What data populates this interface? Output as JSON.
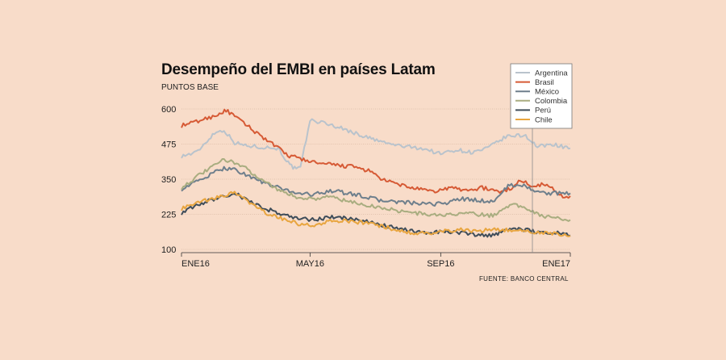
{
  "chart_data": {
    "type": "line",
    "title": "Desempeño del EMBI en países Latam",
    "subtitle": "PUNTOS BASE",
    "source": "FUENTE: BANCO CENTRAL",
    "ylim": [
      100,
      600
    ],
    "yticks": [
      "600",
      "475",
      "350",
      "225",
      "100"
    ],
    "ytick_values": [
      600,
      475,
      350,
      225,
      100
    ],
    "x_start": "2016-01-01",
    "x_end": "2017-01-01",
    "xticks": [
      {
        "label": "ENE16",
        "date": "2016-01-01"
      },
      {
        "label": "MAY16",
        "date": "2016-05-01"
      },
      {
        "label": "SEP16",
        "date": "2016-09-01"
      },
      {
        "label": "ENE17",
        "date": "2017-01-01"
      }
    ],
    "grid": true,
    "legend_position": "top-right",
    "series": [
      {
        "name": "Argentina",
        "color": "#b9c3cc",
        "x": [
          "2016-01-01",
          "2016-01-15",
          "2016-02-01",
          "2016-02-10",
          "2016-02-20",
          "2016-03-01",
          "2016-03-15",
          "2016-04-01",
          "2016-04-12",
          "2016-04-18",
          "2016-04-22",
          "2016-05-01",
          "2016-05-15",
          "2016-06-01",
          "2016-06-15",
          "2016-07-01",
          "2016-07-15",
          "2016-08-01",
          "2016-08-15",
          "2016-09-01",
          "2016-09-15",
          "2016-10-01",
          "2016-10-15",
          "2016-11-01",
          "2016-11-10",
          "2016-11-20",
          "2016-12-01",
          "2016-12-15",
          "2017-01-01"
        ],
        "values": [
          432,
          445,
          515,
          525,
          480,
          470,
          465,
          460,
          400,
          385,
          390,
          560,
          550,
          530,
          510,
          490,
          475,
          465,
          460,
          440,
          455,
          445,
          460,
          500,
          505,
          505,
          465,
          475,
          460
        ]
      },
      {
        "name": "Brasil",
        "color": "#d65a35",
        "x": [
          "2016-01-01",
          "2016-01-15",
          "2016-02-01",
          "2016-02-12",
          "2016-02-25",
          "2016-03-10",
          "2016-03-25",
          "2016-04-10",
          "2016-04-25",
          "2016-05-10",
          "2016-05-25",
          "2016-06-10",
          "2016-06-25",
          "2016-07-10",
          "2016-07-25",
          "2016-08-10",
          "2016-08-25",
          "2016-09-10",
          "2016-09-25",
          "2016-10-10",
          "2016-10-25",
          "2016-11-05",
          "2016-11-15",
          "2016-11-25",
          "2016-12-10",
          "2016-12-25",
          "2017-01-01"
        ],
        "values": [
          540,
          555,
          575,
          595,
          560,
          520,
          480,
          435,
          420,
          405,
          400,
          395,
          380,
          345,
          330,
          315,
          305,
          320,
          310,
          320,
          305,
          315,
          345,
          330,
          330,
          290,
          290
        ]
      },
      {
        "name": "México",
        "color": "#6e7f8c",
        "x": [
          "2016-01-01",
          "2016-01-20",
          "2016-02-10",
          "2016-02-20",
          "2016-03-05",
          "2016-03-20",
          "2016-04-05",
          "2016-04-20",
          "2016-05-05",
          "2016-05-20",
          "2016-06-05",
          "2016-06-20",
          "2016-07-05",
          "2016-07-20",
          "2016-08-05",
          "2016-08-20",
          "2016-09-05",
          "2016-09-20",
          "2016-10-05",
          "2016-10-20",
          "2016-11-05",
          "2016-11-20",
          "2016-12-05",
          "2016-12-20",
          "2017-01-01"
        ],
        "values": [
          315,
          350,
          390,
          385,
          360,
          335,
          315,
          300,
          295,
          310,
          300,
          290,
          275,
          270,
          265,
          260,
          265,
          280,
          275,
          270,
          330,
          325,
          300,
          300,
          300
        ]
      },
      {
        "name": "Colombia",
        "color": "#a9ad80",
        "x": [
          "2016-01-01",
          "2016-01-20",
          "2016-02-10",
          "2016-02-20",
          "2016-03-05",
          "2016-03-20",
          "2016-04-05",
          "2016-04-20",
          "2016-05-05",
          "2016-05-20",
          "2016-06-05",
          "2016-06-20",
          "2016-07-05",
          "2016-07-20",
          "2016-08-05",
          "2016-08-20",
          "2016-09-05",
          "2016-09-20",
          "2016-10-05",
          "2016-10-20",
          "2016-11-05",
          "2016-11-20",
          "2016-12-05",
          "2016-12-20",
          "2017-01-01"
        ],
        "values": [
          320,
          370,
          420,
          410,
          380,
          340,
          305,
          285,
          280,
          290,
          270,
          260,
          250,
          240,
          230,
          225,
          220,
          230,
          225,
          220,
          260,
          250,
          220,
          210,
          205
        ]
      },
      {
        "name": "Perú",
        "color": "#3f4d5a",
        "x": [
          "2016-01-01",
          "2016-01-20",
          "2016-02-10",
          "2016-02-20",
          "2016-03-05",
          "2016-03-20",
          "2016-04-05",
          "2016-04-20",
          "2016-05-05",
          "2016-05-20",
          "2016-06-05",
          "2016-06-20",
          "2016-07-05",
          "2016-07-20",
          "2016-08-05",
          "2016-08-20",
          "2016-09-05",
          "2016-09-20",
          "2016-10-05",
          "2016-10-20",
          "2016-11-05",
          "2016-11-20",
          "2016-12-05",
          "2016-12-20",
          "2017-01-01"
        ],
        "values": [
          230,
          265,
          290,
          300,
          270,
          245,
          225,
          210,
          205,
          215,
          210,
          200,
          190,
          175,
          165,
          160,
          165,
          160,
          150,
          150,
          175,
          170,
          160,
          160,
          150
        ]
      },
      {
        "name": "Chile",
        "color": "#e8a53f",
        "x": [
          "2016-01-01",
          "2016-01-20",
          "2016-02-10",
          "2016-02-20",
          "2016-03-05",
          "2016-03-20",
          "2016-04-05",
          "2016-04-20",
          "2016-05-05",
          "2016-05-20",
          "2016-06-05",
          "2016-06-20",
          "2016-07-05",
          "2016-07-20",
          "2016-08-05",
          "2016-08-20",
          "2016-09-05",
          "2016-09-20",
          "2016-10-05",
          "2016-10-20",
          "2016-11-05",
          "2016-11-20",
          "2016-12-05",
          "2016-12-20",
          "2017-01-01"
        ],
        "values": [
          245,
          270,
          290,
          305,
          265,
          230,
          210,
          190,
          185,
          200,
          200,
          195,
          185,
          170,
          160,
          155,
          165,
          170,
          165,
          170,
          170,
          165,
          160,
          155,
          148
        ]
      }
    ]
  }
}
